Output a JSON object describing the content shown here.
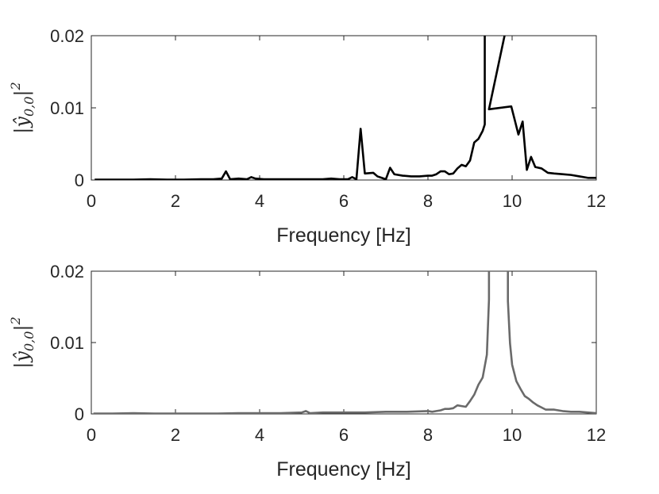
{
  "chart_data": [
    {
      "type": "line",
      "xlabel": "Frequency [Hz]",
      "ylabel": "|ŷ0,0|2",
      "xlim": [
        0,
        12
      ],
      "ylim": [
        0,
        0.02
      ],
      "xticks": [
        "0",
        "2",
        "4",
        "6",
        "8",
        "10",
        "12"
      ],
      "yticks": [
        "0",
        "0.01",
        "0.02"
      ],
      "grid": false,
      "colors": {
        "line": "#000000"
      },
      "series": [
        {
          "x": [
            0.08,
            0.5,
            1.0,
            1.4,
            1.8,
            2.2,
            2.6,
            2.9,
            3.1,
            3.2,
            3.3,
            3.5,
            3.7,
            3.8,
            3.9,
            4.1,
            4.5,
            5.0,
            5.5,
            5.7,
            5.9,
            6.1,
            6.2,
            6.3,
            6.4,
            6.5,
            6.7,
            6.8,
            6.9,
            7.0,
            7.1,
            7.2,
            7.4,
            7.6,
            7.8,
            8.0,
            8.1,
            8.2,
            8.3,
            8.4,
            8.5,
            8.6,
            8.7,
            8.8,
            8.9,
            9.0,
            9.1,
            9.2,
            9.3,
            9.35,
            9.45,
            9.98,
            10.05,
            10.15,
            10.25,
            10.35,
            10.45,
            10.55,
            10.7,
            10.85,
            11.0,
            11.2,
            11.4,
            11.6,
            11.8,
            12.0
          ],
          "y": [
            5e-05,
            5e-05,
            5e-05,
            0.0001,
            5e-05,
            5e-05,
            0.0001,
            0.0001,
            0.0002,
            0.0012,
            0.0001,
            0.0002,
            0.0001,
            0.0004,
            0.0002,
            0.0001,
            0.0001,
            0.0001,
            0.0001,
            0.0002,
            0.0001,
            0.0001,
            0.0004,
            0.0001,
            0.0071,
            0.0009,
            0.001,
            0.0005,
            0.0003,
            0.0001,
            0.0017,
            0.0008,
            0.0006,
            0.0005,
            0.0005,
            0.0006,
            0.0006,
            0.0008,
            0.0012,
            0.0012,
            0.0008,
            0.0009,
            0.0016,
            0.0021,
            0.0019,
            0.0027,
            0.0052,
            0.0057,
            0.0068,
            0.0077,
            0.0098,
            0.0102,
            0.0086,
            0.0063,
            0.0081,
            0.0014,
            0.0032,
            0.0018,
            0.0016,
            0.001,
            0.0009,
            0.0008,
            0.0007,
            0.0005,
            0.0003,
            0.0003
          ]
        }
      ],
      "peak_x": [
        9.35,
        9.98
      ]
    },
    {
      "type": "line",
      "xlabel": "Frequency [Hz]",
      "ylabel": "|ŷ0,0|2",
      "xlim": [
        0,
        12
      ],
      "ylim": [
        0,
        0.02
      ],
      "xticks": [
        "0",
        "2",
        "4",
        "6",
        "8",
        "10",
        "12"
      ],
      "yticks": [
        "0",
        "0.01",
        "0.02"
      ],
      "grid": false,
      "colors": {
        "line": "#6a6a6a"
      },
      "series": [
        {
          "x": [
            0.05,
            0.5,
            1.0,
            1.5,
            2.0,
            2.5,
            3.0,
            3.5,
            4.0,
            4.5,
            5.0,
            5.1,
            5.2,
            5.5,
            6.0,
            6.5,
            7.0,
            7.5,
            8.0,
            8.1,
            8.2,
            8.3,
            8.4,
            8.5,
            8.6,
            8.7,
            8.8,
            8.9,
            9.0,
            9.1,
            9.2,
            9.3,
            9.4,
            9.45,
            9.9,
            9.95,
            10.0,
            10.1,
            10.2,
            10.3,
            10.4,
            10.5,
            10.6,
            10.7,
            10.8,
            11.0,
            11.2,
            11.4,
            11.6,
            11.8,
            12.0
          ],
          "y": [
            5e-05,
            5e-05,
            0.0001,
            5e-05,
            5e-05,
            5e-05,
            5e-05,
            0.0001,
            0.0001,
            0.0001,
            0.0002,
            0.0004,
            0.0001,
            0.0002,
            0.0002,
            0.0002,
            0.0003,
            0.0003,
            0.0004,
            0.0003,
            0.0004,
            0.0005,
            0.0007,
            0.0007,
            0.0008,
            0.0012,
            0.0011,
            0.001,
            0.0018,
            0.0027,
            0.0041,
            0.0051,
            0.0083,
            0.016,
            0.0158,
            0.0099,
            0.0069,
            0.0046,
            0.0035,
            0.0025,
            0.0021,
            0.0016,
            0.0012,
            0.0009,
            0.0006,
            0.0006,
            0.0004,
            0.0003,
            0.0003,
            0.0002,
            0.0001
          ]
        }
      ],
      "peak_x": [
        9.45,
        9.9
      ]
    }
  ]
}
